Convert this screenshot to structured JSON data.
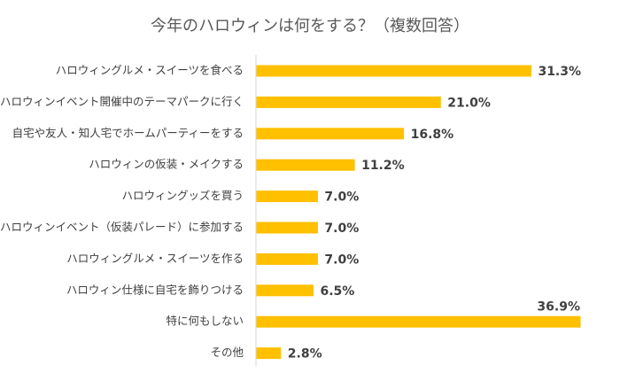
{
  "chart_data": {
    "type": "bar",
    "orientation": "horizontal",
    "title": "今年のハロウィンは何をする？（複数回答）",
    "categories": [
      "ハロウィングルメ・スイーツを食べる",
      "ハロウィンイベント開催中のテーマパークに行く",
      "自宅や友人・知人宅でホームパーティーをする",
      "ハロウィンの仮装・メイクする",
      "ハロウィングッズを買う",
      "ハロウィンイベント（仮装パレード）に参加する",
      "ハロウィングルメ・スイーツを作る",
      "ハロウィン仕様に自宅を飾りつける",
      "特に何もしない",
      "その他"
    ],
    "values": [
      31.3,
      21.0,
      16.8,
      11.2,
      7.0,
      7.0,
      7.0,
      6.5,
      36.9,
      2.8
    ],
    "value_labels": [
      "31.3%",
      "21.0%",
      "16.8%",
      "11.2%",
      "7.0%",
      "7.0%",
      "7.0%",
      "6.5%",
      "36.9%",
      "2.8%"
    ],
    "xlim": [
      0,
      36.9
    ],
    "grid": false,
    "legend": "none",
    "bar_color": "#FFC000",
    "axis_color": "#D9D9D9",
    "text_color": "#404040"
  }
}
